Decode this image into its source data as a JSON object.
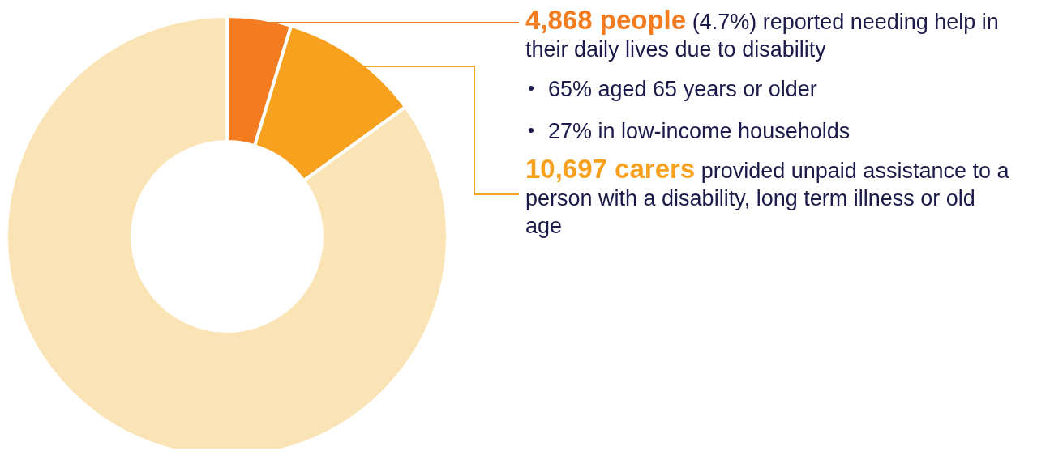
{
  "chart_data": {
    "type": "donut",
    "categories": [
      "4,868 people",
      "10,697 carers",
      null
    ],
    "values": [
      4.7,
      10.3,
      85.0
    ],
    "colors": [
      "#f47c20",
      "#f7a11e",
      "#fae3b4"
    ],
    "annotations": [
      "(4.7%) reported needing help in their daily lives due to disability",
      "65% aged 65 years or older",
      "27% in low-income households",
      "provided unpaid assistance to a person with a disability, long term illness or old age"
    ]
  }
}
